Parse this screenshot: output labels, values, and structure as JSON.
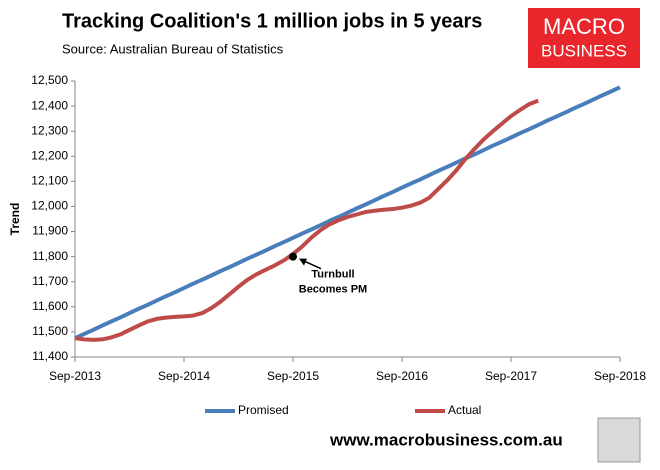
{
  "chart_data": {
    "type": "line",
    "title": "Tracking Coalition's 1 million jobs in 5 years",
    "subtitle": "Source: Australian Bureau of Statistics",
    "y_label": "Trend",
    "logo": [
      "MACRO",
      "BUSINESS"
    ],
    "footer": "www.macrobusiness.com.au",
    "categories": [
      "Sep-2013",
      null,
      null,
      null,
      null,
      null,
      null,
      null,
      null,
      null,
      null,
      null,
      "Sep-2014",
      null,
      null,
      null,
      null,
      null,
      null,
      null,
      null,
      null,
      null,
      null,
      "Sep-2015",
      null,
      null,
      null,
      null,
      null,
      null,
      null,
      null,
      null,
      null,
      null,
      "Sep-2016",
      null,
      null,
      null,
      null,
      null,
      null,
      null,
      null,
      null,
      null,
      null,
      "Sep-2017",
      null,
      null,
      null,
      null,
      null,
      null,
      null,
      null,
      null,
      null,
      null,
      "Sep-2018"
    ],
    "series": [
      {
        "name": "Promised",
        "color": "#4a7ebb",
        "values": [
          11475,
          11492,
          11508,
          11525,
          11542,
          11558,
          11575,
          11592,
          11608,
          11625,
          11642,
          11658,
          11675,
          11692,
          11708,
          11725,
          11742,
          11758,
          11775,
          11792,
          11808,
          11825,
          11842,
          11858,
          11875,
          11892,
          11908,
          11925,
          11942,
          11958,
          11975,
          11992,
          12008,
          12025,
          12042,
          12058,
          12075,
          12092,
          12108,
          12125,
          12142,
          12158,
          12175,
          12192,
          12208,
          12225,
          12242,
          12258,
          12275,
          12292,
          12308,
          12325,
          12342,
          12358,
          12375,
          12392,
          12408,
          12425,
          12442,
          12458,
          12475
        ]
      },
      {
        "name": "Actual",
        "color": "#be4b48",
        "values": [
          11475,
          11470,
          11468,
          11470,
          11478,
          11490,
          11508,
          11525,
          11542,
          11552,
          11557,
          11560,
          11562,
          11565,
          11575,
          11595,
          11620,
          11650,
          11680,
          11708,
          11730,
          11748,
          11765,
          11785,
          11810,
          11840,
          11875,
          11905,
          11928,
          11945,
          11958,
          11968,
          11978,
          11983,
          11987,
          11990,
          11995,
          12003,
          12015,
          12035,
          12070,
          12105,
          12145,
          12190,
          12230,
          12268,
          12300,
          12330,
          12360,
          12385,
          12408,
          12422,
          null,
          null,
          null,
          null,
          null,
          null,
          null,
          null,
          null
        ]
      }
    ],
    "annotation": {
      "text": [
        "Turnbull",
        "Becomes PM"
      ],
      "x": 24,
      "y": 11800
    },
    "ylim": [
      11400,
      12500
    ],
    "yticks": [
      {
        "value": 11400,
        "label": "11,400"
      },
      {
        "value": 11500,
        "label": "11,500"
      },
      {
        "value": 11600,
        "label": "11,600"
      },
      {
        "value": 11700,
        "label": "11,700"
      },
      {
        "value": 11800,
        "label": "11,800"
      },
      {
        "value": 11900,
        "label": "11,900"
      },
      {
        "value": 12000,
        "label": "12,000"
      },
      {
        "value": 12100,
        "label": "12,100"
      },
      {
        "value": 12200,
        "label": "12,200"
      },
      {
        "value": 12300,
        "label": "12,300"
      },
      {
        "value": 12400,
        "label": "12,400"
      },
      {
        "value": 12500,
        "label": "12,500"
      }
    ],
    "grid": false
  }
}
